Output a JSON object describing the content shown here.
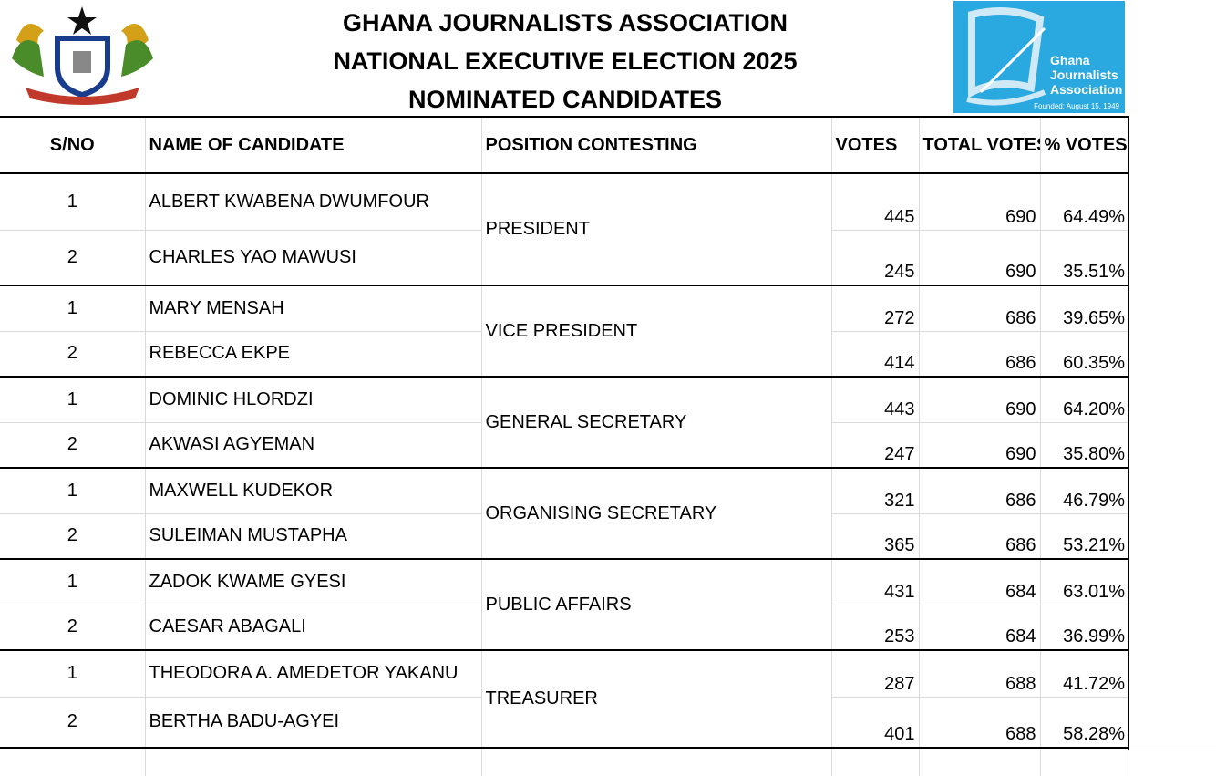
{
  "header": {
    "title_line1": "GHANA JOURNALISTS ASSOCIATION",
    "title_line2": "NATIONAL EXECUTIVE ELECTION 2025",
    "title_line3": "NOMINATED CANDIDATES",
    "coat_of_arms_icon": "ghana-coat-of-arms",
    "logo": {
      "line1": "Ghana",
      "line2": "Journalists",
      "line3": "Association",
      "founded": "Founded: August 15, 1949",
      "color": "#2aa8e0"
    }
  },
  "table": {
    "columns": [
      "S/NO",
      "NAME OF CANDIDATE",
      "POSITION CONTESTING",
      "VOTES",
      "TOTAL VOTES",
      "% VOTES"
    ],
    "positions": [
      {
        "position": "PRESIDENT",
        "candidates": [
          {
            "sno": "1",
            "name": "ALBERT KWABENA DWUMFOUR",
            "votes": "445",
            "total": "690",
            "pct": "64.49%"
          },
          {
            "sno": "2",
            "name": "CHARLES YAO MAWUSI",
            "votes": "245",
            "total": "690",
            "pct": "35.51%"
          }
        ]
      },
      {
        "position": "VICE PRESIDENT",
        "candidates": [
          {
            "sno": "1",
            "name": "MARY MENSAH",
            "votes": "272",
            "total": "686",
            "pct": "39.65%"
          },
          {
            "sno": "2",
            "name": "REBECCA EKPE",
            "votes": "414",
            "total": "686",
            "pct": "60.35%"
          }
        ]
      },
      {
        "position": "GENERAL SECRETARY",
        "candidates": [
          {
            "sno": "1",
            "name": "DOMINIC HLORDZI",
            "votes": "443",
            "total": "690",
            "pct": "64.20%"
          },
          {
            "sno": "2",
            "name": "AKWASI AGYEMAN",
            "votes": "247",
            "total": "690",
            "pct": "35.80%"
          }
        ]
      },
      {
        "position": "ORGANISING SECRETARY",
        "candidates": [
          {
            "sno": "1",
            "name": "MAXWELL KUDEKOR",
            "votes": "321",
            "total": "686",
            "pct": "46.79%"
          },
          {
            "sno": "2",
            "name": "SULEIMAN MUSTAPHA",
            "votes": "365",
            "total": "686",
            "pct": "53.21%"
          }
        ]
      },
      {
        "position": "PUBLIC AFFAIRS",
        "candidates": [
          {
            "sno": "1",
            "name": "ZADOK KWAME GYESI",
            "votes": "431",
            "total": "684",
            "pct": "63.01%"
          },
          {
            "sno": "2",
            "name": "CAESAR ABAGALI",
            "votes": "253",
            "total": "684",
            "pct": "36.99%"
          }
        ]
      },
      {
        "position": "TREASURER",
        "candidates": [
          {
            "sno": "1",
            "name": "THEODORA A. AMEDETOR YAKANU",
            "votes": "287",
            "total": "688",
            "pct": "41.72%"
          },
          {
            "sno": "2",
            "name": "BERTHA BADU-AGYEI",
            "votes": "401",
            "total": "688",
            "pct": "58.28%"
          }
        ]
      }
    ]
  }
}
